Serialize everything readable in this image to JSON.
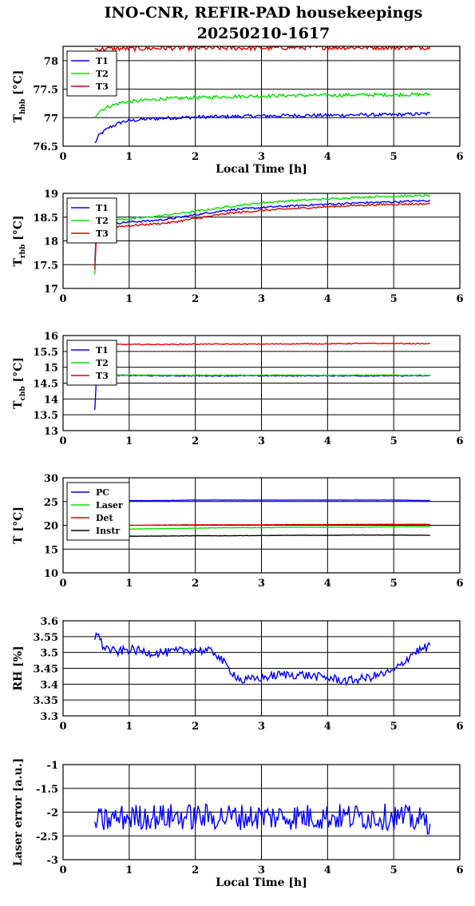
{
  "title_line1": "INO-CNR, REFIR-PAD housekeepings",
  "title_line2": "20250210-1617",
  "chart_data": [
    {
      "type": "line",
      "ylabel": "T",
      "ylabel_sub": "hbb",
      "ylabel_unit": "[°C]",
      "xlabel": "Local Time [h]",
      "xlim": [
        0,
        6
      ],
      "ylim": [
        76.5,
        78.25
      ],
      "yticks": [
        76.5,
        77,
        77.5,
        78
      ],
      "ytick_labels": [
        "76.5",
        "77",
        "77.5",
        "78"
      ],
      "grid": true,
      "legend": "top-left",
      "x": [
        0.48,
        0.55,
        0.7,
        0.9,
        1.2,
        1.5,
        2.0,
        2.5,
        3.0,
        3.5,
        4.0,
        4.5,
        5.0,
        5.55
      ],
      "series": [
        {
          "name": "T1",
          "color": "#0000ff",
          "noise": 0.03,
          "values": [
            76.55,
            76.7,
            76.83,
            76.93,
            76.97,
            76.99,
            77.01,
            77.02,
            77.03,
            77.04,
            77.04,
            77.05,
            77.05,
            77.07
          ]
        },
        {
          "name": "T2",
          "color": "#00e000",
          "noise": 0.03,
          "values": [
            77.02,
            77.12,
            77.2,
            77.27,
            77.3,
            77.33,
            77.35,
            77.37,
            77.38,
            77.39,
            77.39,
            77.4,
            77.4,
            77.41
          ]
        },
        {
          "name": "T3",
          "color": "#e00000",
          "noise": 0.04,
          "values": [
            78.2,
            78.2,
            78.21,
            78.21,
            78.21,
            78.22,
            78.22,
            78.22,
            78.22,
            78.23,
            78.23,
            78.23,
            78.23,
            78.23
          ]
        }
      ]
    },
    {
      "type": "line",
      "ylabel": "T",
      "ylabel_sub": "rbb",
      "ylabel_unit": "[°C]",
      "xlabel": "",
      "xlim": [
        0,
        6
      ],
      "ylim": [
        17,
        19
      ],
      "yticks": [
        17,
        17.5,
        18,
        18.5,
        19
      ],
      "ytick_labels": [
        "17",
        "17.5",
        "18",
        "18.5",
        "19"
      ],
      "grid": true,
      "legend": "top-left",
      "x": [
        0.48,
        0.5,
        0.52,
        0.6,
        0.8,
        1.0,
        1.3,
        1.6,
        2.0,
        2.5,
        3.0,
        3.5,
        4.0,
        4.5,
        5.0,
        5.55
      ],
      "series": [
        {
          "name": "T1",
          "color": "#0000ff",
          "noise": 0.02,
          "values": [
            17.6,
            18.2,
            18.33,
            18.35,
            18.37,
            18.4,
            18.42,
            18.46,
            18.55,
            18.65,
            18.7,
            18.74,
            18.77,
            18.8,
            18.82,
            18.85
          ]
        },
        {
          "name": "T2",
          "color": "#00e000",
          "noise": 0.02,
          "values": [
            17.3,
            18.3,
            18.43,
            18.45,
            18.45,
            18.46,
            18.5,
            18.55,
            18.62,
            18.72,
            18.8,
            18.85,
            18.88,
            18.92,
            18.94,
            18.95
          ]
        },
        {
          "name": "T3",
          "color": "#e00000",
          "noise": 0.02,
          "values": [
            17.4,
            18.0,
            18.25,
            18.27,
            18.3,
            18.32,
            18.35,
            18.38,
            18.47,
            18.58,
            18.64,
            18.68,
            18.72,
            18.75,
            18.77,
            18.78
          ]
        }
      ]
    },
    {
      "type": "line",
      "ylabel": "T",
      "ylabel_sub": "cbb",
      "ylabel_unit": "[°C]",
      "xlabel": "",
      "xlim": [
        0,
        6
      ],
      "ylim": [
        13,
        16
      ],
      "yticks": [
        13,
        13.5,
        14,
        14.5,
        15,
        15.5,
        16
      ],
      "ytick_labels": [
        "13",
        "13.5",
        "14",
        "14.5",
        "15",
        "15.5",
        "16"
      ],
      "grid": true,
      "legend": "top-left",
      "x": [
        0.48,
        0.5,
        0.52,
        0.6,
        0.8,
        1.0,
        1.5,
        2.0,
        2.5,
        3.0,
        3.5,
        4.0,
        4.5,
        5.0,
        5.55
      ],
      "series": [
        {
          "name": "T1",
          "color": "#0000ff",
          "noise": 0.015,
          "values": [
            13.65,
            14.5,
            14.72,
            14.75,
            14.74,
            14.74,
            14.73,
            14.73,
            14.73,
            14.73,
            14.73,
            14.73,
            14.73,
            14.73,
            14.73
          ]
        },
        {
          "name": "T2",
          "color": "#00e000",
          "noise": 0.015,
          "values": [
            14.6,
            14.7,
            14.76,
            14.77,
            14.76,
            14.75,
            14.75,
            14.75,
            14.75,
            14.75,
            14.75,
            14.75,
            14.75,
            14.75,
            14.75
          ]
        },
        {
          "name": "T3",
          "color": "#e00000",
          "noise": 0.015,
          "values": [
            15.6,
            15.7,
            15.71,
            15.71,
            15.72,
            15.72,
            15.72,
            15.73,
            15.73,
            15.73,
            15.74,
            15.74,
            15.75,
            15.75,
            15.74
          ]
        }
      ]
    },
    {
      "type": "line",
      "ylabel": "T [°C]",
      "ylabel_sub": "",
      "ylabel_unit": "",
      "xlabel": "",
      "xlim": [
        0,
        6
      ],
      "ylim": [
        10,
        30
      ],
      "yticks": [
        10,
        15,
        20,
        25,
        30
      ],
      "ytick_labels": [
        "10",
        "15",
        "20",
        "25",
        "30"
      ],
      "grid": true,
      "legend": "top-left",
      "x": [
        0.48,
        0.8,
        1.0,
        1.5,
        2.0,
        2.5,
        3.0,
        3.5,
        4.0,
        4.5,
        5.0,
        5.55
      ],
      "series": [
        {
          "name": "PC",
          "color": "#0000ff",
          "noise": 0.03,
          "values": [
            25.0,
            25.1,
            25.2,
            25.2,
            25.3,
            25.3,
            25.3,
            25.3,
            25.3,
            25.3,
            25.3,
            25.2
          ]
        },
        {
          "name": "Laser",
          "color": "#00e000",
          "noise": 0.03,
          "values": [
            18.9,
            19.1,
            19.2,
            19.3,
            19.4,
            19.5,
            19.5,
            19.6,
            19.6,
            19.6,
            19.7,
            19.7
          ]
        },
        {
          "name": "Det",
          "color": "#e00000",
          "noise": 0.03,
          "values": [
            19.9,
            19.95,
            20.0,
            20.05,
            20.1,
            20.1,
            20.1,
            20.15,
            20.15,
            20.2,
            20.2,
            20.2
          ]
        },
        {
          "name": "Instr",
          "color": "#000000",
          "noise": 0.03,
          "values": [
            17.7,
            17.7,
            17.7,
            17.75,
            17.8,
            17.8,
            17.85,
            17.9,
            17.9,
            17.95,
            17.95,
            17.9
          ]
        }
      ]
    },
    {
      "type": "line",
      "ylabel": "RH [%]",
      "ylabel_sub": "",
      "ylabel_unit": "",
      "xlabel": "",
      "xlim": [
        0,
        6
      ],
      "ylim": [
        3.3,
        3.6
      ],
      "yticks": [
        3.3,
        3.35,
        3.4,
        3.45,
        3.5,
        3.55,
        3.6
      ],
      "ytick_labels": [
        "3.3",
        "3.35",
        "3.4",
        "3.45",
        "3.5",
        "3.55",
        "3.6"
      ],
      "grid": true,
      "legend": "none",
      "x": [
        0.48,
        0.5,
        0.6,
        0.8,
        1.0,
        1.3,
        1.6,
        2.0,
        2.3,
        2.5,
        2.7,
        3.0,
        3.3,
        3.6,
        4.0,
        4.3,
        4.6,
        5.0,
        5.3,
        5.55
      ],
      "series": [
        {
          "name": "",
          "color": "#0000ff",
          "noise": 0.014,
          "values": [
            3.55,
            3.57,
            3.52,
            3.5,
            3.51,
            3.5,
            3.5,
            3.51,
            3.5,
            3.45,
            3.41,
            3.42,
            3.43,
            3.43,
            3.42,
            3.41,
            3.42,
            3.44,
            3.5,
            3.52
          ]
        }
      ]
    },
    {
      "type": "line",
      "ylabel": "Laser error [a.u.]",
      "ylabel_sub": "",
      "ylabel_unit": "",
      "xlabel": "Local Time [h]",
      "xlim": [
        0,
        6
      ],
      "ylim": [
        -3,
        -1
      ],
      "yticks": [
        -3,
        -2.5,
        -2,
        -1.5,
        -1
      ],
      "ytick_labels": [
        "-3",
        "-2.5",
        "-2",
        "-1.5",
        "-1"
      ],
      "grid": true,
      "legend": "none",
      "x": [
        0.48,
        1.0,
        2.0,
        3.0,
        4.0,
        5.0,
        5.55
      ],
      "series": [
        {
          "name": "",
          "color": "#0000ff",
          "noise": 0.28,
          "values": [
            -2.2,
            -2.1,
            -2.1,
            -2.1,
            -2.1,
            -2.1,
            -2.2
          ]
        }
      ]
    }
  ]
}
